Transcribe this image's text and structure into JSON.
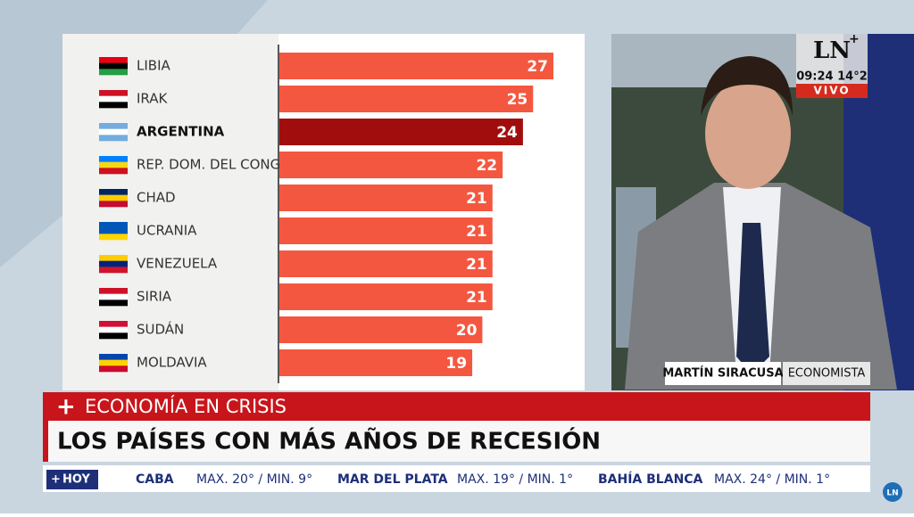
{
  "chart_data": {
    "type": "bar",
    "orientation": "horizontal",
    "categories": [
      "LIBIA",
      "IRAK",
      "ARGENTINA",
      "REP. DOM. DEL CONGO",
      "CHAD",
      "UCRANIA",
      "VENEZUELA",
      "SIRIA",
      "SUDÁN",
      "MOLDAVIA"
    ],
    "values": [
      27,
      25,
      24,
      22,
      21,
      21,
      21,
      21,
      20,
      19
    ],
    "colors": [
      "#f4573f",
      "#f4573f",
      "#a10d0d",
      "#f4573f",
      "#f4573f",
      "#f4573f",
      "#f4573f",
      "#f4573f",
      "#f4573f",
      "#f4573f"
    ]
  },
  "channel": {
    "logo": "LN",
    "time_temp": "09:24 14°2",
    "live": "VIVO"
  },
  "caption": {
    "name": "MARTÍN SIRACUSA",
    "role": "ECONOMISTA"
  },
  "lower_third": {
    "kicker": "ECONOMÍA EN CRISIS",
    "headline": "LOS PAÍSES CON MÁS AÑOS DE RECESIÓN"
  },
  "ticker": {
    "label": "HOY",
    "items": [
      {
        "city": "CABA",
        "forecast": "MAX. 20° / MIN. 9°"
      },
      {
        "city": "MAR DEL PLATA",
        "forecast": "MAX. 19° / MIN. 1°"
      },
      {
        "city": "BAHÍA BLANCA",
        "forecast": "MAX. 24° / MIN. 1°"
      }
    ]
  },
  "corner_logo": "LN"
}
